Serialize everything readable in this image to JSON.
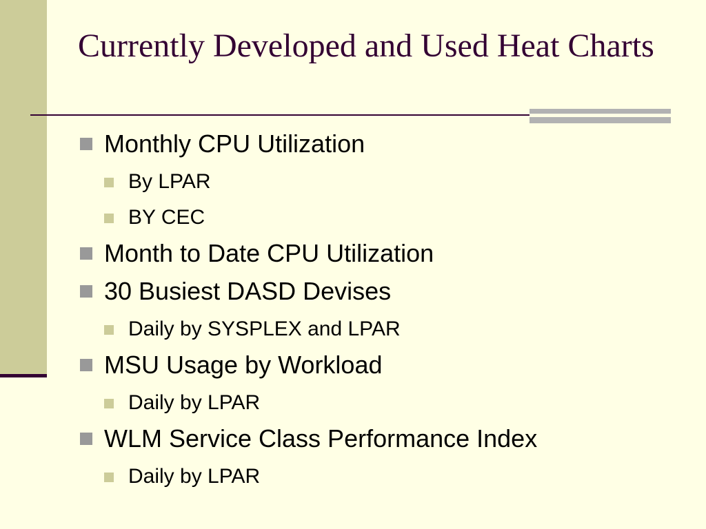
{
  "slide": {
    "title": "Currently Developed and Used Heat Charts",
    "colors": {
      "background": "#FFFFE5",
      "left_band": "#CCCC99",
      "title_text": "#330033",
      "rule": "#330033",
      "accent_bar": "#B2B2B2",
      "bullet_l1": "#999999",
      "bullet_l2": "#CCCC99"
    }
  },
  "bullets": [
    {
      "text": "Monthly CPU Utilization",
      "sub": [
        "By LPAR",
        "BY CEC"
      ]
    },
    {
      "text": "Month to Date CPU Utilization",
      "sub": []
    },
    {
      "text": "30 Busiest DASD Devises",
      "sub": [
        "Daily by SYSPLEX and LPAR"
      ]
    },
    {
      "text": "MSU Usage by Workload",
      "sub": [
        "Daily by LPAR"
      ]
    },
    {
      "text": "WLM Service Class Performance Index",
      "sub": [
        "Daily by LPAR"
      ]
    }
  ]
}
